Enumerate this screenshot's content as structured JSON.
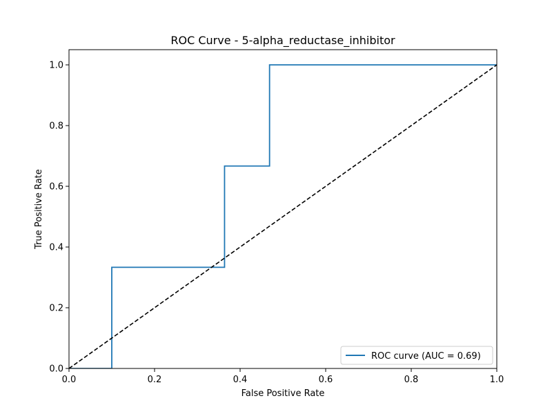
{
  "chart_data": {
    "type": "line",
    "title": "ROC Curve - 5-alpha_reductase_inhibitor",
    "xlabel": "False Positive Rate",
    "ylabel": "True Positive Rate",
    "xlim": [
      0.0,
      1.0
    ],
    "ylim": [
      0.0,
      1.05
    ],
    "xticks": [
      0.0,
      0.2,
      0.4,
      0.6,
      0.8,
      1.0
    ],
    "yticks": [
      0.0,
      0.2,
      0.4,
      0.6,
      0.8,
      1.0
    ],
    "xtick_labels": [
      "0.0",
      "0.2",
      "0.4",
      "0.6",
      "0.8",
      "1.0"
    ],
    "ytick_labels": [
      "0.0",
      "0.2",
      "0.4",
      "0.6",
      "0.8",
      "1.0"
    ],
    "grid": false,
    "legend_position": "bottom-right",
    "series": [
      {
        "name": "ROC curve (AUC = 0.69)",
        "color": "#1f77b4",
        "style": "solid",
        "x": [
          0.0,
          0.1,
          0.1,
          0.3636,
          0.3636,
          0.4688,
          0.4688,
          1.0
        ],
        "y": [
          0.0,
          0.0,
          0.3333,
          0.3333,
          0.6667,
          0.6667,
          1.0,
          1.0
        ]
      },
      {
        "color": "#000000",
        "style": "dashed",
        "x": [
          0.0,
          1.0
        ],
        "y": [
          0.0,
          1.0
        ]
      }
    ]
  }
}
